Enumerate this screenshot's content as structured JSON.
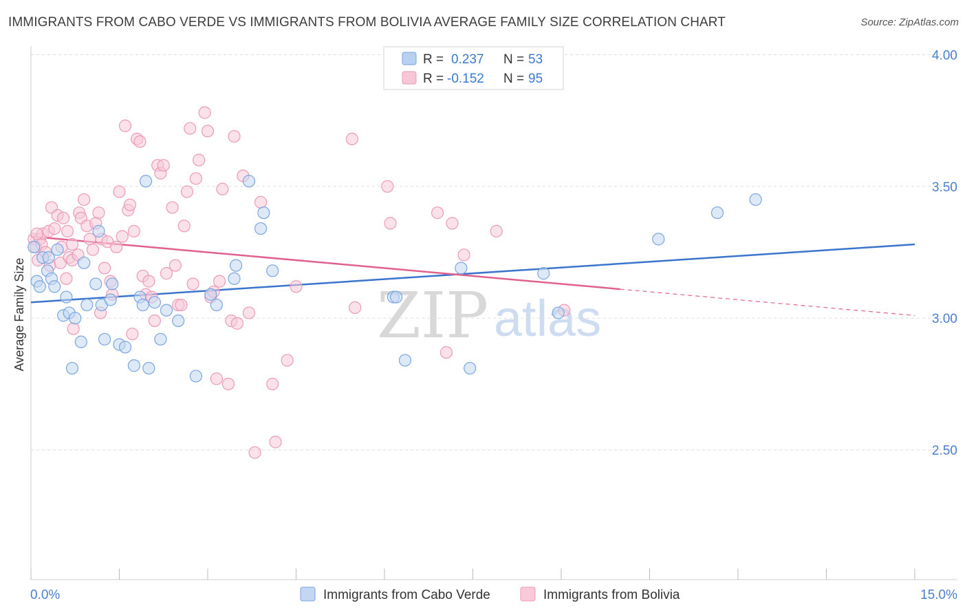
{
  "title": "IMMIGRANTS FROM CABO VERDE VS IMMIGRANTS FROM BOLIVIA AVERAGE FAMILY SIZE CORRELATION CHART",
  "source": "Source: ZipAtlas.com",
  "watermark": {
    "zip": "ZIP",
    "atlas": "atlas"
  },
  "legend": {
    "r_label": "R =",
    "n_label": "N =",
    "rows": [
      {
        "r": "0.237",
        "n": "53",
        "fill": "#b8d0f2",
        "stroke": "#7aa6e0"
      },
      {
        "r": "-0.152",
        "n": "95",
        "fill": "#f8c6d6",
        "stroke": "#ec9ab5"
      }
    ]
  },
  "colors": {
    "blue": "#3a74cc",
    "pink": "#e0608e",
    "blue_fill": "#c3d7f3",
    "pink_fill": "#f8cad9",
    "axis_text": "#4a7fd0"
  },
  "chart_data": {
    "type": "scatter",
    "title": "IMMIGRANTS FROM CABO VERDE VS IMMIGRANTS FROM BOLIVIA AVERAGE FAMILY SIZE CORRELATION CHART",
    "xlabel": "",
    "ylabel": "Average Family Size",
    "xlim": [
      0,
      15
    ],
    "ylim": [
      2.0,
      4.05
    ],
    "x_tick_labels": [
      "0.0%",
      "15.0%"
    ],
    "y_ticks": [
      2.5,
      3.0,
      3.5,
      4.0
    ],
    "y_tick_labels": [
      "2.50",
      "3.00",
      "3.50",
      "4.00"
    ],
    "grid": true,
    "legend_position": "bottom",
    "series": [
      {
        "name": "Immigrants from Cabo Verde",
        "color": "#3a74cc",
        "points": [
          [
            0.05,
            3.27
          ],
          [
            0.1,
            3.14
          ],
          [
            0.15,
            3.12
          ],
          [
            0.2,
            3.23
          ],
          [
            0.28,
            3.18
          ],
          [
            0.3,
            3.23
          ],
          [
            0.35,
            3.15
          ],
          [
            0.4,
            3.12
          ],
          [
            0.45,
            3.26
          ],
          [
            0.55,
            3.01
          ],
          [
            0.6,
            3.08
          ],
          [
            0.65,
            3.02
          ],
          [
            0.7,
            2.81
          ],
          [
            0.75,
            3.0
          ],
          [
            0.85,
            2.91
          ],
          [
            0.9,
            3.21
          ],
          [
            0.95,
            3.05
          ],
          [
            1.1,
            3.13
          ],
          [
            1.15,
            3.33
          ],
          [
            1.2,
            3.05
          ],
          [
            1.25,
            2.92
          ],
          [
            1.35,
            3.07
          ],
          [
            1.38,
            3.13
          ],
          [
            1.5,
            2.9
          ],
          [
            1.6,
            2.89
          ],
          [
            1.75,
            2.82
          ],
          [
            1.85,
            3.08
          ],
          [
            1.9,
            3.05
          ],
          [
            1.95,
            3.52
          ],
          [
            2.0,
            2.81
          ],
          [
            2.1,
            3.06
          ],
          [
            2.2,
            2.92
          ],
          [
            2.3,
            3.03
          ],
          [
            2.5,
            2.99
          ],
          [
            2.8,
            2.78
          ],
          [
            3.05,
            3.09
          ],
          [
            3.15,
            3.05
          ],
          [
            3.45,
            3.15
          ],
          [
            3.48,
            3.2
          ],
          [
            3.7,
            3.52
          ],
          [
            3.9,
            3.34
          ],
          [
            3.95,
            3.4
          ],
          [
            4.1,
            3.18
          ],
          [
            6.15,
            3.08
          ],
          [
            6.2,
            3.08
          ],
          [
            6.35,
            2.84
          ],
          [
            7.3,
            3.19
          ],
          [
            7.45,
            2.81
          ],
          [
            8.7,
            3.17
          ],
          [
            8.95,
            3.02
          ],
          [
            10.65,
            3.3
          ],
          [
            11.65,
            3.4
          ],
          [
            12.3,
            3.45
          ]
        ],
        "trend": {
          "x": [
            0.0,
            15.0
          ],
          "y": [
            3.06,
            3.28
          ]
        }
      },
      {
        "name": "Immigrants from Bolivia",
        "color": "#e0608e",
        "points": [
          [
            0.05,
            3.3
          ],
          [
            0.08,
            3.27
          ],
          [
            0.12,
            3.22
          ],
          [
            0.15,
            3.3
          ],
          [
            0.18,
            3.28
          ],
          [
            0.2,
            3.32
          ],
          [
            0.25,
            3.25
          ],
          [
            0.3,
            3.33
          ],
          [
            0.32,
            3.2
          ],
          [
            0.35,
            3.42
          ],
          [
            0.4,
            3.34
          ],
          [
            0.45,
            3.39
          ],
          [
            0.5,
            3.21
          ],
          [
            0.52,
            3.27
          ],
          [
            0.55,
            3.38
          ],
          [
            0.6,
            3.15
          ],
          [
            0.62,
            3.33
          ],
          [
            0.65,
            3.23
          ],
          [
            0.7,
            3.22
          ],
          [
            0.72,
            2.96
          ],
          [
            0.8,
            3.24
          ],
          [
            0.82,
            3.4
          ],
          [
            0.85,
            3.38
          ],
          [
            0.9,
            3.45
          ],
          [
            0.95,
            3.35
          ],
          [
            1.0,
            3.3
          ],
          [
            1.05,
            3.26
          ],
          [
            1.1,
            3.36
          ],
          [
            1.15,
            3.4
          ],
          [
            1.18,
            3.02
          ],
          [
            1.2,
            3.3
          ],
          [
            1.25,
            3.19
          ],
          [
            1.3,
            3.29
          ],
          [
            1.35,
            3.14
          ],
          [
            1.38,
            3.09
          ],
          [
            1.45,
            3.27
          ],
          [
            1.5,
            3.48
          ],
          [
            1.55,
            3.31
          ],
          [
            1.6,
            3.73
          ],
          [
            1.65,
            3.41
          ],
          [
            1.68,
            3.43
          ],
          [
            1.72,
            2.94
          ],
          [
            1.75,
            3.33
          ],
          [
            1.8,
            3.68
          ],
          [
            1.85,
            3.67
          ],
          [
            1.9,
            3.16
          ],
          [
            1.95,
            3.09
          ],
          [
            2.0,
            3.14
          ],
          [
            2.05,
            3.08
          ],
          [
            2.1,
            2.99
          ],
          [
            2.15,
            3.58
          ],
          [
            2.2,
            3.55
          ],
          [
            2.25,
            3.58
          ],
          [
            2.3,
            3.17
          ],
          [
            2.4,
            3.42
          ],
          [
            2.45,
            3.2
          ],
          [
            2.5,
            3.05
          ],
          [
            2.55,
            3.05
          ],
          [
            2.6,
            3.35
          ],
          [
            2.65,
            3.48
          ],
          [
            2.7,
            3.72
          ],
          [
            2.75,
            3.13
          ],
          [
            2.8,
            3.53
          ],
          [
            2.85,
            3.6
          ],
          [
            2.95,
            3.78
          ],
          [
            3.0,
            3.71
          ],
          [
            3.05,
            3.08
          ],
          [
            3.1,
            3.1
          ],
          [
            3.15,
            2.77
          ],
          [
            3.2,
            3.14
          ],
          [
            3.25,
            3.49
          ],
          [
            3.35,
            2.75
          ],
          [
            3.4,
            2.99
          ],
          [
            3.45,
            3.69
          ],
          [
            3.5,
            2.98
          ],
          [
            3.6,
            3.54
          ],
          [
            3.7,
            3.02
          ],
          [
            3.8,
            2.49
          ],
          [
            3.9,
            3.44
          ],
          [
            4.1,
            2.75
          ],
          [
            4.15,
            2.53
          ],
          [
            4.35,
            2.84
          ],
          [
            4.5,
            3.12
          ],
          [
            5.45,
            3.68
          ],
          [
            5.5,
            3.04
          ],
          [
            6.05,
            3.5
          ],
          [
            6.1,
            3.36
          ],
          [
            6.9,
            3.4
          ],
          [
            7.05,
            2.87
          ],
          [
            7.15,
            3.36
          ],
          [
            7.35,
            3.24
          ],
          [
            7.9,
            3.33
          ],
          [
            9.05,
            3.03
          ],
          [
            0.1,
            3.32
          ],
          [
            0.7,
            3.28
          ]
        ],
        "trend": {
          "x": [
            0.0,
            10.0
          ],
          "y": [
            3.31,
            3.11
          ]
        },
        "trend_dashed": {
          "x": [
            10.0,
            15.0
          ],
          "y": [
            3.11,
            3.01
          ]
        }
      }
    ]
  }
}
